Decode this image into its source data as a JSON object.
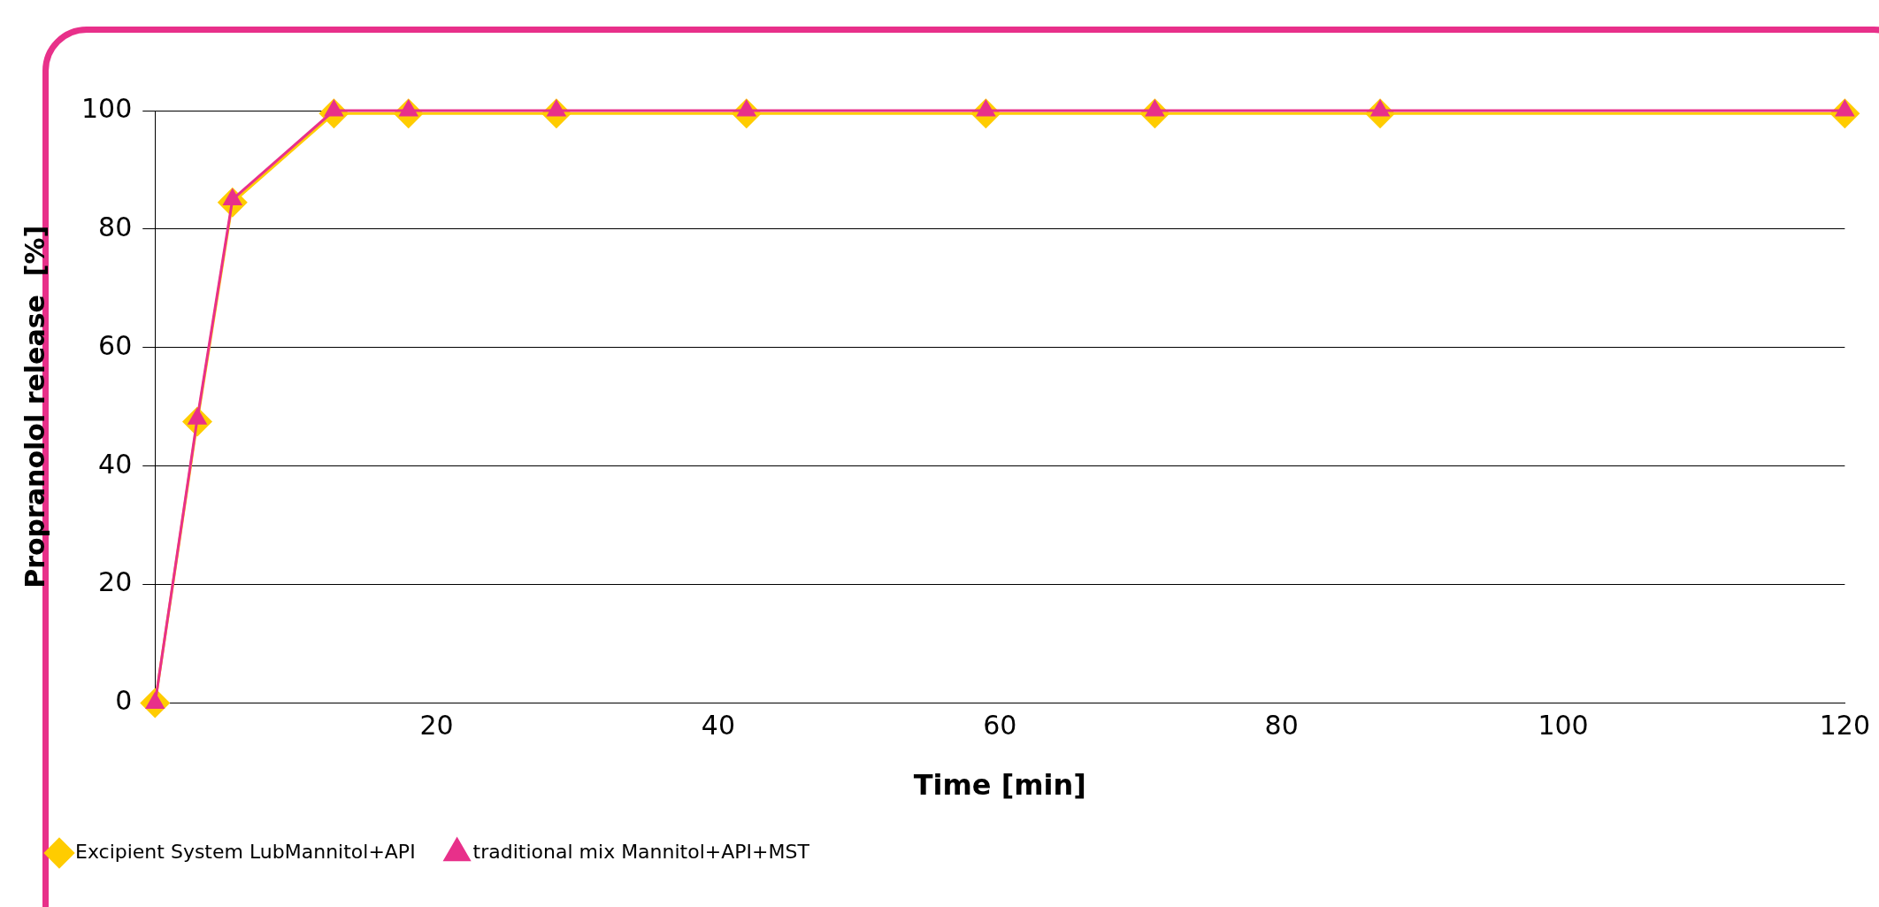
{
  "chart_data": {
    "type": "line",
    "xlabel": "Time [min]",
    "ylabel": "Propranolol release  [%]",
    "x": [
      0,
      3,
      5.5,
      12.7,
      18,
      28.5,
      42,
      59,
      71,
      87,
      120
    ],
    "series": [
      {
        "name": "Excipient System LubMannitol+API",
        "color": "#ffcc00",
        "marker": "diamond",
        "values": [
          0,
          47.5,
          84.5,
          99.5,
          99.5,
          99.5,
          99.5,
          99.5,
          99.5,
          99.5,
          99.5
        ]
      },
      {
        "name": "traditional mix Mannitol+API+MST",
        "color": "#e8308a",
        "marker": "triangle",
        "values": [
          0,
          48,
          85,
          100,
          100,
          100,
          100,
          100,
          100,
          100,
          100
        ]
      }
    ],
    "xlim": [
      0,
      120
    ],
    "xticks": [
      20,
      40,
      60,
      80,
      100,
      120
    ],
    "ylim": [
      0,
      100
    ],
    "yticks": [
      0,
      20,
      40,
      60,
      80,
      100
    ],
    "grid": "y",
    "legend": "bottom left",
    "line_style": "solid"
  }
}
